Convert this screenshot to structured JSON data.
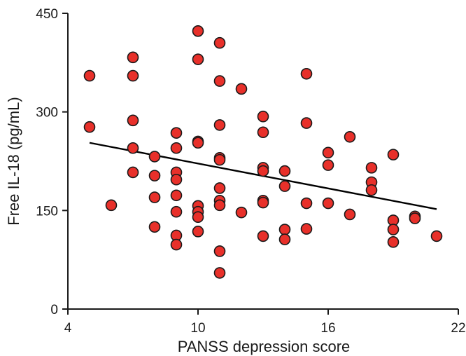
{
  "chart_data": {
    "type": "scatter",
    "xlabel": "PANSS depression score",
    "ylabel": "Free IL-18 (pg/mL)",
    "xlim": [
      4,
      22
    ],
    "ylim": [
      0,
      450
    ],
    "x_ticks": [
      4,
      10,
      16,
      22
    ],
    "y_ticks": [
      0,
      150,
      300,
      450
    ],
    "grid": false,
    "marker_color": "#e8302a",
    "marker_edge_color": "#1a1a1a",
    "trendline": {
      "x": [
        5,
        21
      ],
      "y": [
        253,
        152
      ],
      "color": "#000000"
    },
    "points": [
      {
        "x": 5,
        "y": 355
      },
      {
        "x": 5,
        "y": 277
      },
      {
        "x": 6,
        "y": 158
      },
      {
        "x": 7,
        "y": 383
      },
      {
        "x": 7,
        "y": 355
      },
      {
        "x": 7,
        "y": 287
      },
      {
        "x": 7,
        "y": 245
      },
      {
        "x": 7,
        "y": 208
      },
      {
        "x": 8,
        "y": 232
      },
      {
        "x": 8,
        "y": 203
      },
      {
        "x": 8,
        "y": 170
      },
      {
        "x": 8,
        "y": 125
      },
      {
        "x": 9,
        "y": 268
      },
      {
        "x": 9,
        "y": 245
      },
      {
        "x": 9,
        "y": 208
      },
      {
        "x": 9,
        "y": 197
      },
      {
        "x": 9,
        "y": 173
      },
      {
        "x": 9,
        "y": 148
      },
      {
        "x": 9,
        "y": 112
      },
      {
        "x": 9,
        "y": 98
      },
      {
        "x": 10,
        "y": 423
      },
      {
        "x": 10,
        "y": 380
      },
      {
        "x": 10,
        "y": 255
      },
      {
        "x": 10,
        "y": 253
      },
      {
        "x": 10,
        "y": 157
      },
      {
        "x": 10,
        "y": 148
      },
      {
        "x": 10,
        "y": 140
      },
      {
        "x": 10,
        "y": 118
      },
      {
        "x": 11,
        "y": 405
      },
      {
        "x": 11,
        "y": 347
      },
      {
        "x": 11,
        "y": 280
      },
      {
        "x": 11,
        "y": 230
      },
      {
        "x": 11,
        "y": 227
      },
      {
        "x": 11,
        "y": 184
      },
      {
        "x": 11,
        "y": 165
      },
      {
        "x": 11,
        "y": 158
      },
      {
        "x": 11,
        "y": 88
      },
      {
        "x": 11,
        "y": 55
      },
      {
        "x": 12,
        "y": 335
      },
      {
        "x": 12,
        "y": 147
      },
      {
        "x": 13,
        "y": 293
      },
      {
        "x": 13,
        "y": 269
      },
      {
        "x": 13,
        "y": 215
      },
      {
        "x": 13,
        "y": 210
      },
      {
        "x": 13,
        "y": 165
      },
      {
        "x": 13,
        "y": 162
      },
      {
        "x": 13,
        "y": 111
      },
      {
        "x": 14,
        "y": 210
      },
      {
        "x": 14,
        "y": 187
      },
      {
        "x": 14,
        "y": 121
      },
      {
        "x": 14,
        "y": 106
      },
      {
        "x": 15,
        "y": 358
      },
      {
        "x": 15,
        "y": 283
      },
      {
        "x": 15,
        "y": 161
      },
      {
        "x": 15,
        "y": 122
      },
      {
        "x": 16,
        "y": 238
      },
      {
        "x": 16,
        "y": 219
      },
      {
        "x": 16,
        "y": 161
      },
      {
        "x": 17,
        "y": 262
      },
      {
        "x": 17,
        "y": 144
      },
      {
        "x": 18,
        "y": 215
      },
      {
        "x": 18,
        "y": 193
      },
      {
        "x": 18,
        "y": 181
      },
      {
        "x": 19,
        "y": 235
      },
      {
        "x": 19,
        "y": 135
      },
      {
        "x": 19,
        "y": 121
      },
      {
        "x": 19,
        "y": 102
      },
      {
        "x": 20,
        "y": 141
      },
      {
        "x": 20,
        "y": 138
      },
      {
        "x": 21,
        "y": 111
      }
    ]
  }
}
